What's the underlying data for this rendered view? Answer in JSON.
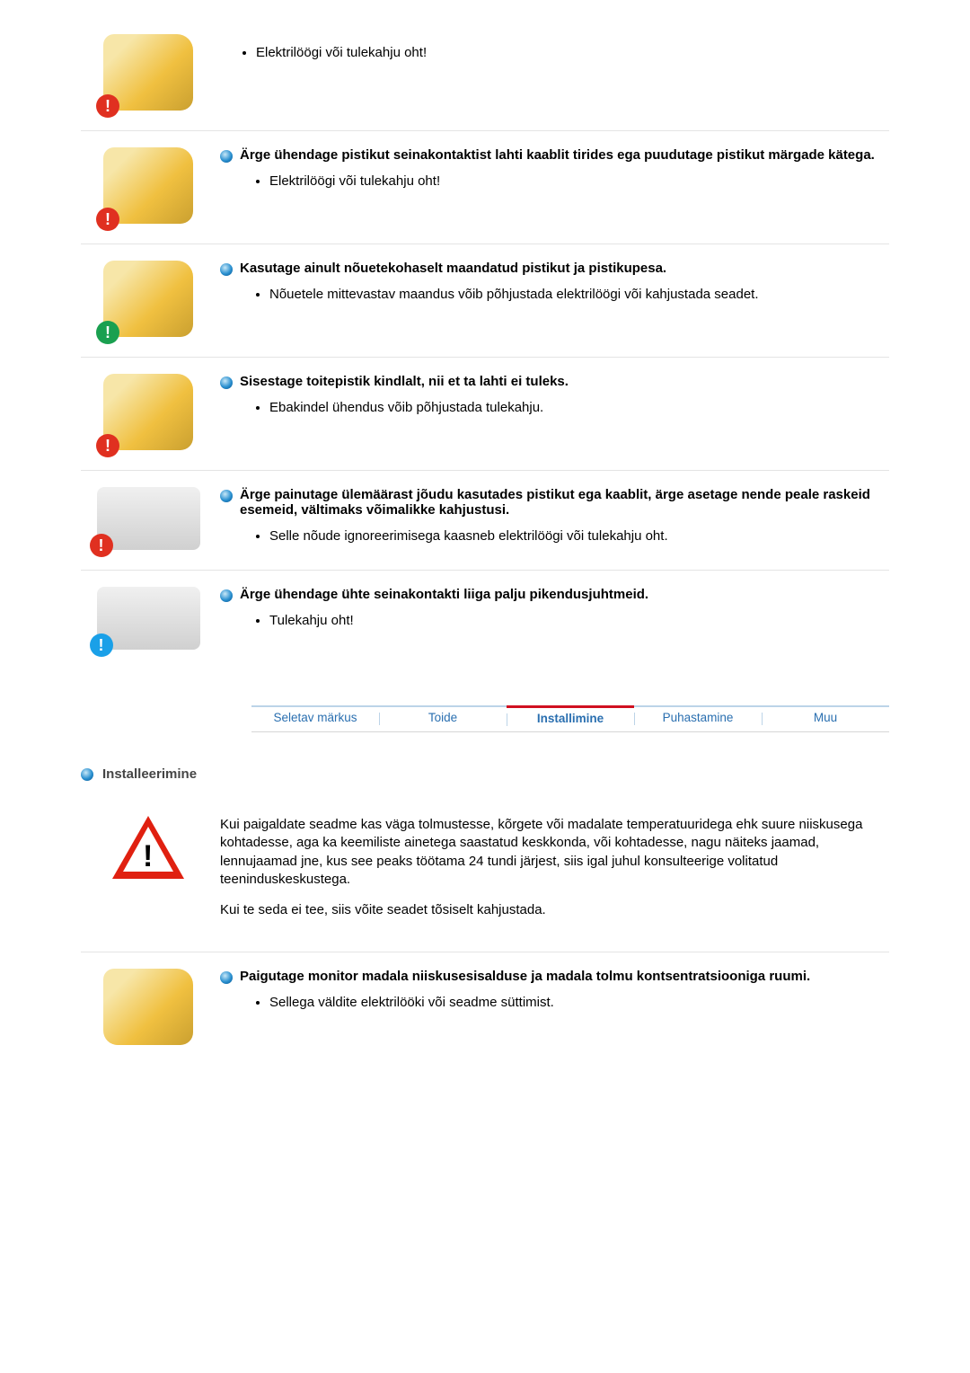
{
  "sections_power": [
    {
      "title": "",
      "points": [
        "Elektrilöögi või tulekahju oht!"
      ],
      "badge": "red",
      "ill": "plug"
    },
    {
      "title": "Ärge ühendage pistikut seinakontaktist lahti kaablit tirides ega puudutage pistikut märgade kätega.",
      "points": [
        "Elektrilöögi või tulekahju oht!"
      ],
      "badge": "red",
      "ill": "wet"
    },
    {
      "title": "Kasutage ainult nõuetekohaselt maandatud pistikut ja pistikupesa.",
      "points": [
        "Nõuetele mittevastav maandus võib põhjustada elektrilöögi või kahjustada seadet."
      ],
      "badge": "green",
      "ill": "ground"
    },
    {
      "title": "Sisestage toitepistik kindlalt, nii et ta lahti ei tuleks.",
      "points": [
        "Ebakindel ühendus võib põhjustada tulekahju."
      ],
      "badge": "red",
      "ill": "plugfirm"
    },
    {
      "title": "Ärge painutage ülemäärast jõudu kasutades pistikut ega kaablit, ärge asetage nende peale raskeid esemeid, vältimaks võimalikke kahjustusi.",
      "points": [
        "Selle nõude ignoreerimisega kaasneb elektrilöögi või tulekahju oht."
      ],
      "badge": "red",
      "ill": "bend"
    },
    {
      "title": "Ärge ühendage ühte seinakontakti liiga palju pikendusjuhtmeid.",
      "points": [
        "Tulekahju oht!"
      ],
      "badge": "blue",
      "ill": "strip"
    }
  ],
  "tabs": {
    "items": [
      "Seletav märkus",
      "Toide",
      "Installimine",
      "Puhastamine",
      "Muu"
    ],
    "active_index": 2
  },
  "install_heading": "Installeerimine",
  "install_warning_paras": [
    "Kui paigaldate seadme kas väga tolmustesse, kõrgete või madalate temperatuuridega ehk suure niiskusega kohtadesse, aga ka keemiliste ainetega saastatud keskkonda, või kohtadesse, nagu näiteks jaamad, lennujaamad jne, kus see peaks töötama 24 tundi järjest, siis igal juhul konsulteerige volitatud teeninduskeskustega.",
    "Kui te seda ei tee, siis võite seadet tõsiselt kahjustada."
  ],
  "sections_install": [
    {
      "title": "Paigutage monitor madala niiskusesisalduse ja madala tolmu kontsentratsiooniga ruumi.",
      "points": [
        "Sellega väldite elektrilööki või seadme süttimist."
      ],
      "badge": "none",
      "ill": "room"
    }
  ],
  "colors": {
    "link": "#2a6fb0",
    "active_tab": "#d01020",
    "divider": "#e4e4e4"
  }
}
